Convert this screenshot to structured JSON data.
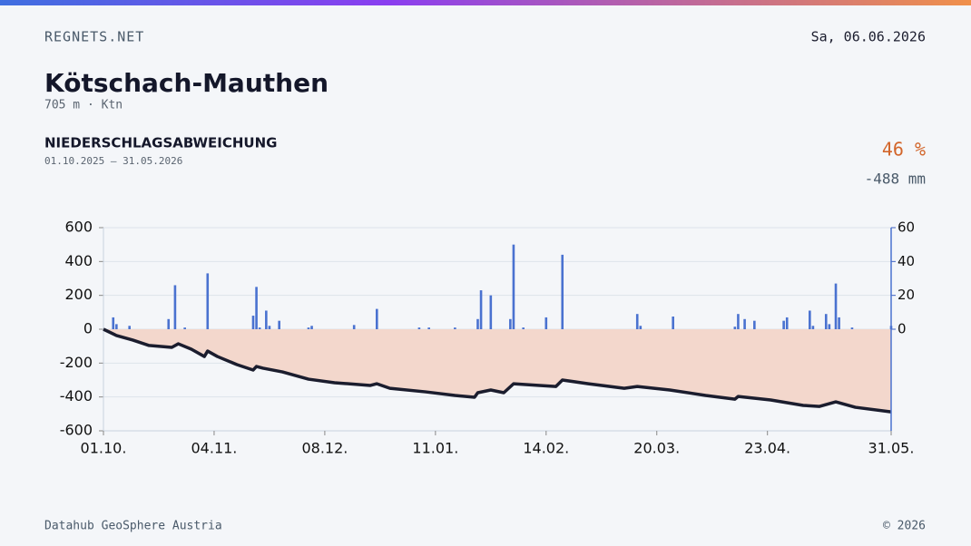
{
  "header": {
    "site": "REGNETS.NET",
    "date": "Sa, 06.06.2026",
    "title": "Kötschach-Mauthen",
    "subtitle": "705 m · Ktn",
    "section": "NIEDERSCHLAGSABWEICHUNG",
    "period": "01.10.2025 – 31.05.2026",
    "percent": "46 %",
    "deviation": "-488 mm"
  },
  "footer": {
    "source": "Datahub GeoSphere Austria",
    "copyright": "© 2026"
  },
  "chart_data": {
    "type": "combo",
    "xlim": [
      "01.10.",
      "31.05."
    ],
    "xticks": [
      "01.10.",
      "04.11.",
      "08.12.",
      "11.01.",
      "14.02.",
      "20.03.",
      "23.04.",
      "31.05."
    ],
    "ylim": [
      -600,
      600
    ],
    "yticks": [
      -600,
      -400,
      -200,
      0,
      200,
      400,
      600
    ],
    "y2lim": [
      -60,
      60
    ],
    "y2ticks": [
      0,
      20,
      40,
      60
    ],
    "grid": true,
    "series": [
      {
        "type": "area-line",
        "color": "#1b1d2e",
        "fill": "#f3d7cc",
        "x": [
          "01.10.",
          "05.10.",
          "10.10.",
          "15.10.",
          "22.10.",
          "24.10.",
          "28.10.",
          "01.11.",
          "02.11.",
          "05.11.",
          "11.11.",
          "16.11.",
          "17.11.",
          "19.11.",
          "25.11.",
          "03.12.",
          "11.12.",
          "22.12.",
          "24.12.",
          "28.12.",
          "08.01.",
          "17.01.",
          "23.01.",
          "24.01.",
          "28.01.",
          "01.02.",
          "04.02.",
          "12.02.",
          "17.02.",
          "19.02.",
          "27.02.",
          "10.03.",
          "14.03.",
          "24.03.",
          "04.04.",
          "13.04.",
          "14.04.",
          "24.04.",
          "04.05.",
          "09.05.",
          "14.05.",
          "20.05.",
          "31.05."
        ],
        "values": [
          0,
          -37,
          -64,
          -96,
          -107,
          -86,
          -118,
          -161,
          -129,
          -161,
          -209,
          -241,
          -220,
          -230,
          -252,
          -295,
          -316,
          -332,
          -322,
          -349,
          -370,
          -391,
          -402,
          -375,
          -359,
          -375,
          -322,
          -332,
          -338,
          -300,
          -322,
          -349,
          -338,
          -359,
          -391,
          -413,
          -397,
          -418,
          -450,
          -456,
          -429,
          -461,
          -488
        ]
      },
      {
        "type": "bar",
        "axis": "y2",
        "color": "#4a72d0",
        "x": [
          "04.10.",
          "05.10.",
          "09.10.",
          "21.10.",
          "23.10.",
          "26.10.",
          "02.11.",
          "16.11.",
          "17.11.",
          "18.11.",
          "20.11.",
          "21.11.",
          "24.11.",
          "03.12.",
          "04.12.",
          "17.12.",
          "24.12.",
          "06.01.",
          "09.01.",
          "17.01.",
          "24.01.",
          "25.01.",
          "28.01.",
          "03.02.",
          "04.02.",
          "07.02.",
          "14.02.",
          "19.02.",
          "14.03.",
          "15.03.",
          "25.03.",
          "13.04.",
          "14.04.",
          "16.04.",
          "19.04.",
          "28.04.",
          "29.04.",
          "06.05.",
          "07.05.",
          "11.05.",
          "12.05.",
          "14.05.",
          "15.05.",
          "19.05.",
          "31.05."
        ],
        "values": [
          7,
          3,
          2,
          6,
          26,
          1,
          33,
          8,
          25,
          1,
          11,
          2,
          5,
          1,
          2,
          2.5,
          12,
          1,
          1,
          1,
          6,
          23,
          20,
          6,
          50,
          1,
          7,
          44,
          9,
          2,
          7.5,
          1.5,
          9,
          6,
          5,
          5,
          7,
          11,
          2,
          9,
          3,
          27,
          7,
          1,
          2
        ]
      }
    ]
  }
}
